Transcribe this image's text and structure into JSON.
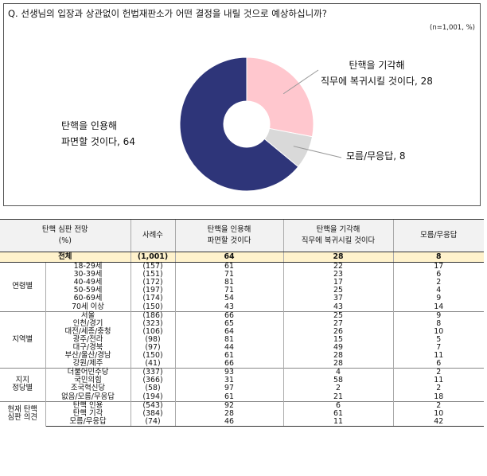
{
  "question": "Q. 선생님의 입장과 상관없이 헌법재판소가 어떤 결정을 내릴 것으로 예상하십니까?",
  "note": "(n=1,001, %)",
  "chart_data": {
    "type": "pie",
    "labels": [
      "탄핵을 인용해 파면할 것이다",
      "탄핵을 기각해 직무에 복귀시킬 것이다",
      "모름/무응답"
    ],
    "values": [
      64,
      28,
      8
    ],
    "colors": [
      "#2e3579",
      "#ffc7ce",
      "#d9d9d9"
    ],
    "label_lines": {
      "cite": [
        "탄핵을 인용해",
        "파면할 것이다, 64"
      ],
      "dismiss": [
        "탄핵을 기각해",
        "직무에 복귀시킬 것이다, 28"
      ],
      "unknown": [
        "모름/무응답, 8"
      ]
    }
  },
  "table": {
    "header": {
      "outlook": "탄핵 심판 전망",
      "unit": "(%)",
      "n": "사례수",
      "cite": [
        "탄핵을 인용해",
        "파면할 것이다"
      ],
      "dismiss": [
        "탄핵을 기각해",
        "직무에 복귀시킬 것이다"
      ],
      "unknown": "모름/무응답"
    },
    "total": {
      "label": "전체",
      "n": "(1,001)",
      "cite": "64",
      "dismiss": "28",
      "unknown": "8"
    },
    "groups": [
      {
        "name": [
          "연령별"
        ],
        "rows": [
          {
            "label": "18-29세",
            "n": "(157)",
            "cite": "61",
            "dismiss": "22",
            "unknown": "17"
          },
          {
            "label": "30-39세",
            "n": "(151)",
            "cite": "71",
            "dismiss": "23",
            "unknown": "6"
          },
          {
            "label": "40-49세",
            "n": "(172)",
            "cite": "81",
            "dismiss": "17",
            "unknown": "2"
          },
          {
            "label": "50-59세",
            "n": "(197)",
            "cite": "71",
            "dismiss": "25",
            "unknown": "4"
          },
          {
            "label": "60-69세",
            "n": "(174)",
            "cite": "54",
            "dismiss": "37",
            "unknown": "9"
          },
          {
            "label": "70세 이상",
            "n": "(150)",
            "cite": "43",
            "dismiss": "43",
            "unknown": "14"
          }
        ]
      },
      {
        "name": [
          "지역별"
        ],
        "rows": [
          {
            "label": "서울",
            "n": "(186)",
            "cite": "66",
            "dismiss": "25",
            "unknown": "9"
          },
          {
            "label": "인천/경기",
            "n": "(323)",
            "cite": "65",
            "dismiss": "27",
            "unknown": "8"
          },
          {
            "label": "대전/세종/충청",
            "n": "(106)",
            "cite": "64",
            "dismiss": "26",
            "unknown": "10"
          },
          {
            "label": "광주/전라",
            "n": "(98)",
            "cite": "81",
            "dismiss": "15",
            "unknown": "5"
          },
          {
            "label": "대구/경북",
            "n": "(97)",
            "cite": "44",
            "dismiss": "49",
            "unknown": "7"
          },
          {
            "label": "부산/울산/경남",
            "n": "(150)",
            "cite": "61",
            "dismiss": "28",
            "unknown": "11"
          },
          {
            "label": "강원/제주",
            "n": "(41)",
            "cite": "66",
            "dismiss": "28",
            "unknown": "6"
          }
        ]
      },
      {
        "name": [
          "지지",
          "정당별"
        ],
        "rows": [
          {
            "label": "더불어민주당",
            "n": "(337)",
            "cite": "93",
            "dismiss": "4",
            "unknown": "2"
          },
          {
            "label": "국민의힘",
            "n": "(366)",
            "cite": "31",
            "dismiss": "58",
            "unknown": "11"
          },
          {
            "label": "조국혁신당",
            "n": "(58)",
            "cite": "97",
            "dismiss": "2",
            "unknown": "2"
          },
          {
            "label": "없음/모름/무응답",
            "n": "(194)",
            "cite": "61",
            "dismiss": "21",
            "unknown": "18"
          }
        ]
      },
      {
        "name": [
          "현재 탄핵",
          "심판 의견"
        ],
        "rows": [
          {
            "label": "탄핵 인용",
            "n": "(543)",
            "cite": "92",
            "dismiss": "6",
            "unknown": "2"
          },
          {
            "label": "탄핵 기각",
            "n": "(384)",
            "cite": "28",
            "dismiss": "61",
            "unknown": "10"
          },
          {
            "label": "모름/무응답",
            "n": "(74)",
            "cite": "46",
            "dismiss": "11",
            "unknown": "42"
          }
        ]
      }
    ]
  }
}
